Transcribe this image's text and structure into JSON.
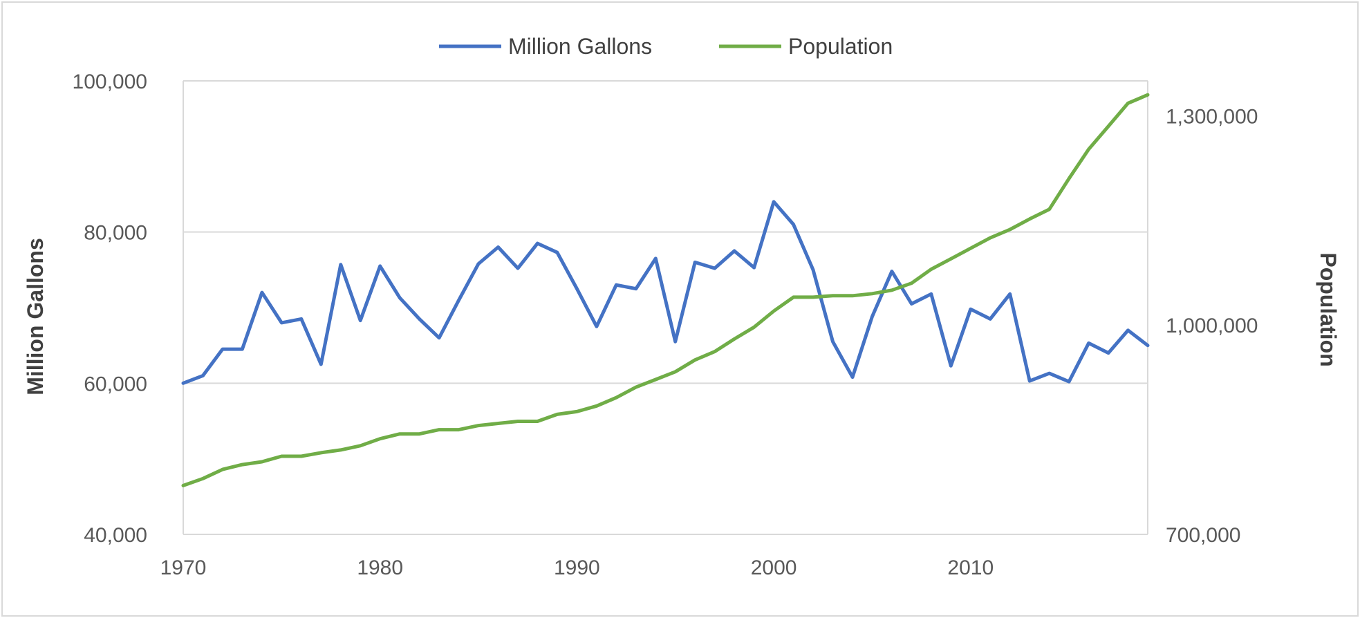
{
  "chart_data": {
    "type": "line",
    "title": "",
    "x_ticks": [
      "1970",
      "1980",
      "1990",
      "2000",
      "2010"
    ],
    "xlim": [
      1970,
      2019
    ],
    "y_left": {
      "label": "Million Gallons",
      "ticks": [
        "40,000",
        "60,000",
        "80,000",
        "100,000"
      ],
      "ylim": [
        40000,
        100000
      ]
    },
    "y_right": {
      "label": "Population",
      "ticks": [
        "700,000",
        "1,000,000",
        "1,300,000"
      ],
      "ylim": [
        700000,
        1350000
      ]
    },
    "grid": "horizontal",
    "legend": "top",
    "x": [
      1970,
      1971,
      1972,
      1973,
      1974,
      1975,
      1976,
      1977,
      1978,
      1979,
      1980,
      1981,
      1982,
      1983,
      1984,
      1985,
      1986,
      1987,
      1988,
      1989,
      1990,
      1991,
      1992,
      1993,
      1994,
      1995,
      1996,
      1997,
      1998,
      1999,
      2000,
      2001,
      2002,
      2003,
      2004,
      2005,
      2006,
      2007,
      2008,
      2009,
      2010,
      2011,
      2012,
      2013,
      2014,
      2015,
      2016,
      2017,
      2018,
      2019
    ],
    "series": [
      {
        "name": "Million Gallons",
        "axis": "left",
        "color": "#4472c4",
        "values": [
          60000,
          61000,
          64500,
          64500,
          72000,
          68000,
          68500,
          62500,
          75700,
          68300,
          75500,
          71300,
          68500,
          66000,
          71000,
          75800,
          78000,
          75200,
          78500,
          77300,
          72500,
          67500,
          73000,
          72500,
          76500,
          65500,
          76000,
          75200,
          77500,
          75300,
          84000,
          81000,
          75000,
          65500,
          60800,
          68800,
          74800,
          70500,
          71800,
          62300,
          69800,
          68500,
          71800,
          60300,
          61300,
          60200,
          65300,
          64000,
          67000,
          65000
        ]
      },
      {
        "name": "Population",
        "axis": "right",
        "color": "#70ad47",
        "values": [
          770000,
          780000,
          793000,
          800000,
          804000,
          812000,
          812000,
          817000,
          821000,
          827000,
          837000,
          844000,
          844000,
          850000,
          850000,
          856000,
          859000,
          862000,
          862000,
          872000,
          876000,
          884000,
          896000,
          911000,
          922000,
          933000,
          950000,
          962000,
          980000,
          997000,
          1020000,
          1040000,
          1040000,
          1042000,
          1042000,
          1045000,
          1050000,
          1060000,
          1080000,
          1095000,
          1110000,
          1125000,
          1137000,
          1152000,
          1166000,
          1210000,
          1252000,
          1285000,
          1318000,
          1330000
        ]
      }
    ]
  }
}
